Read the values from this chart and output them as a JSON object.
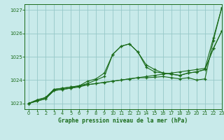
{
  "title": "Graphe pression niveau de la mer (hPa)",
  "background_color": "#c8eaea",
  "grid_color": "#96c8c8",
  "line_color": "#1a6b1a",
  "xlim": [
    -0.5,
    23
  ],
  "ylim": [
    1022.75,
    1027.25
  ],
  "yticks": [
    1023,
    1024,
    1025,
    1026,
    1027
  ],
  "xticks": [
    0,
    1,
    2,
    3,
    4,
    5,
    6,
    7,
    8,
    9,
    10,
    11,
    12,
    13,
    14,
    15,
    16,
    17,
    18,
    19,
    20,
    21,
    22,
    23
  ],
  "series": [
    [
      1023.0,
      1023.15,
      1023.25,
      1023.6,
      1023.65,
      1023.7,
      1023.75,
      1023.8,
      1023.85,
      1023.9,
      1023.95,
      1024.0,
      1024.05,
      1024.1,
      1024.15,
      1024.2,
      1024.25,
      1024.3,
      1024.35,
      1024.4,
      1024.45,
      1024.5,
      1025.8,
      1027.1
    ],
    [
      1023.0,
      1023.15,
      1023.25,
      1023.6,
      1023.65,
      1023.7,
      1023.75,
      1023.95,
      1024.05,
      1024.3,
      1025.1,
      1025.45,
      1025.55,
      1025.2,
      1024.65,
      1024.45,
      1024.3,
      1024.25,
      1024.2,
      1024.3,
      1024.35,
      1024.45,
      1025.35,
      1026.1
    ],
    [
      1023.0,
      1023.1,
      1023.2,
      1023.55,
      1023.6,
      1023.65,
      1023.75,
      1023.85,
      1024.0,
      1024.15,
      1025.1,
      1025.45,
      1025.55,
      1025.2,
      1024.55,
      1024.35,
      1024.3,
      1024.25,
      1024.2,
      1024.3,
      1024.35,
      1024.45,
      1025.35,
      1026.1
    ],
    [
      1023.0,
      1023.1,
      1023.2,
      1023.55,
      1023.6,
      1023.65,
      1023.7,
      1023.8,
      1023.85,
      1023.9,
      1023.95,
      1024.0,
      1024.05,
      1024.1,
      1024.1,
      1024.12,
      1024.15,
      1024.1,
      1024.05,
      1024.1,
      1024.0,
      1024.05,
      1025.7,
      1027.1
    ]
  ]
}
